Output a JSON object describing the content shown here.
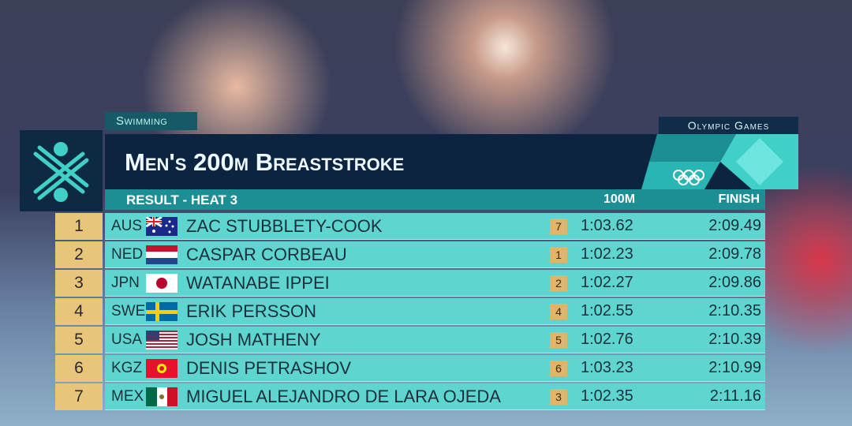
{
  "header": {
    "sport": "Swimming",
    "title": "Men's 200m Breaststroke",
    "brand": "Olympic Games",
    "subtitle": "Result - Heat 3",
    "columns": {
      "split": "100m",
      "finish": "Finish"
    }
  },
  "rows": [
    {
      "rank": 1,
      "country": "AUS",
      "name": "Zac STUBBLETY-COOK",
      "split_rank": 7,
      "split": "1:03.62",
      "finish": "2:09.49"
    },
    {
      "rank": 2,
      "country": "NED",
      "name": "Caspar CORBEAU",
      "split_rank": 1,
      "split": "1:02.23",
      "finish": "2:09.78"
    },
    {
      "rank": 3,
      "country": "JPN",
      "name": "WATANABE Ippei",
      "split_rank": 2,
      "split": "1:02.27",
      "finish": "2:09.86"
    },
    {
      "rank": 4,
      "country": "SWE",
      "name": "Erik PERSSON",
      "split_rank": 4,
      "split": "1:02.55",
      "finish": "2:10.35"
    },
    {
      "rank": 5,
      "country": "USA",
      "name": "Josh MATHENY",
      "split_rank": 5,
      "split": "1:02.76",
      "finish": "2:10.39"
    },
    {
      "rank": 6,
      "country": "KGZ",
      "name": "Denis PETRASHOV",
      "split_rank": 6,
      "split": "1:03.23",
      "finish": "2:10.99"
    },
    {
      "rank": 7,
      "country": "MEX",
      "name": "Miguel Alejandro DE LARA OJEDA",
      "split_rank": 3,
      "split": "1:02.35",
      "finish": "2:11.16"
    }
  ]
}
